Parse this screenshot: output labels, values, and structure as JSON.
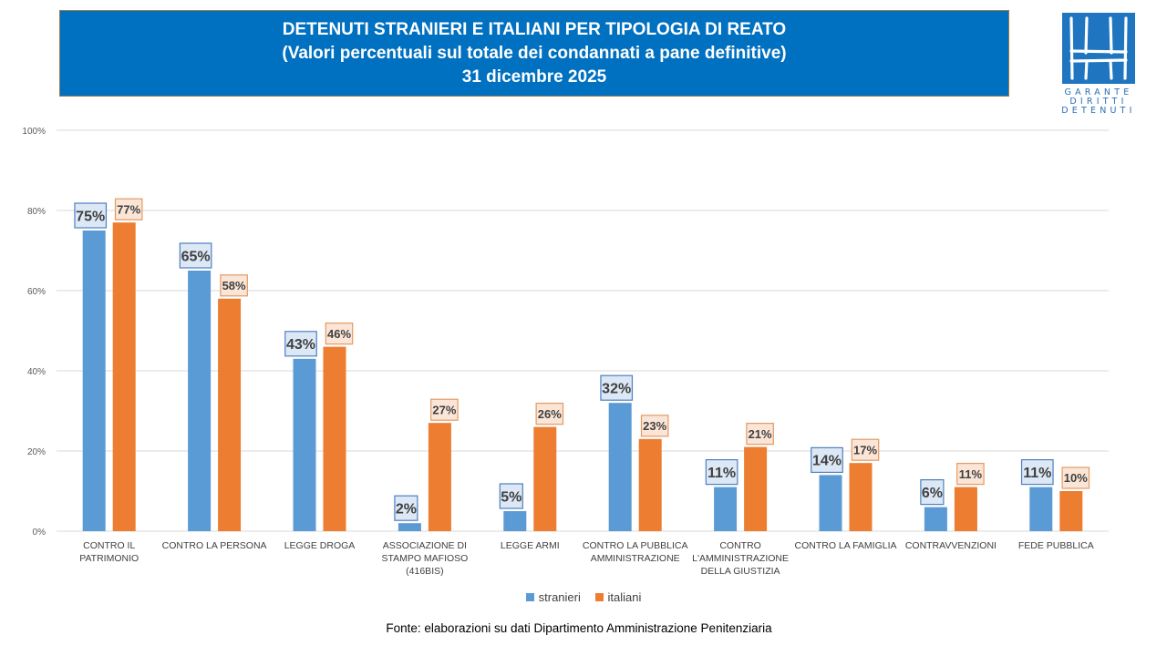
{
  "header": {
    "title_line1": "DETENUTI STRANIERI E ITALIANI PER TIPOLOGIA DI REATO",
    "title_line2": "(Valori percentuali sul totale dei condannati a pane definitive)",
    "title_line3": "31 dicembre 2025"
  },
  "logo": {
    "text_line1": "GARANTE",
    "text_line2": "DIRITTI",
    "text_line3": "DETENUTI"
  },
  "footer": {
    "source": "Fonte: elaborazioni su dati Dipartimento Amministrazione  Penitenziaria"
  },
  "colors": {
    "title_bg": "#0070c0",
    "stranieri": "#5b9bd5",
    "italiani": "#ed7d31",
    "stranieri_label_bg": "#dce8f5",
    "italiani_label_bg": "#fbe5d6",
    "grid": "#d9d9d9"
  },
  "chart_data": {
    "type": "bar",
    "title": "DETENUTI STRANIERI E ITALIANI PER TIPOLOGIA DI REATO",
    "xlabel": "",
    "ylabel": "",
    "ylim": [
      0,
      100
    ],
    "yticks": [
      "0%",
      "20%",
      "40%",
      "60%",
      "80%",
      "100%"
    ],
    "ytick_values": [
      0,
      20,
      40,
      60,
      80,
      100
    ],
    "grid": true,
    "legend_position": "bottom",
    "categories": [
      [
        "CONTRO IL",
        "PATRIMONIO"
      ],
      [
        "CONTRO LA PERSONA"
      ],
      [
        "LEGGE DROGA"
      ],
      [
        "ASSOCIAZIONE DI",
        "STAMPO MAFIOSO",
        "(416BIS)"
      ],
      [
        "LEGGE ARMI"
      ],
      [
        "CONTRO LA PUBBLICA",
        "AMMINISTRAZIONE"
      ],
      [
        "CONTRO",
        "L'AMMINISTRAZIONE",
        "DELLA GIUSTIZIA"
      ],
      [
        "CONTRO LA FAMIGLIA"
      ],
      [
        "CONTRAVVENZIONI"
      ],
      [
        "FEDE PUBBLICA"
      ]
    ],
    "series": [
      {
        "name": "stranieri",
        "values": [
          75,
          65,
          43,
          2,
          5,
          32,
          11,
          14,
          6,
          11
        ],
        "labels": [
          "75%",
          "65%",
          "43%",
          "2%",
          "5%",
          "32%",
          "11%",
          "14%",
          "6%",
          "11%"
        ]
      },
      {
        "name": "italiani",
        "values": [
          77,
          58,
          46,
          27,
          26,
          23,
          21,
          17,
          11,
          10
        ],
        "labels": [
          "77%",
          "58%",
          "46%",
          "27%",
          "26%",
          "23%",
          "21%",
          "17%",
          "11%",
          "10%"
        ]
      }
    ]
  }
}
